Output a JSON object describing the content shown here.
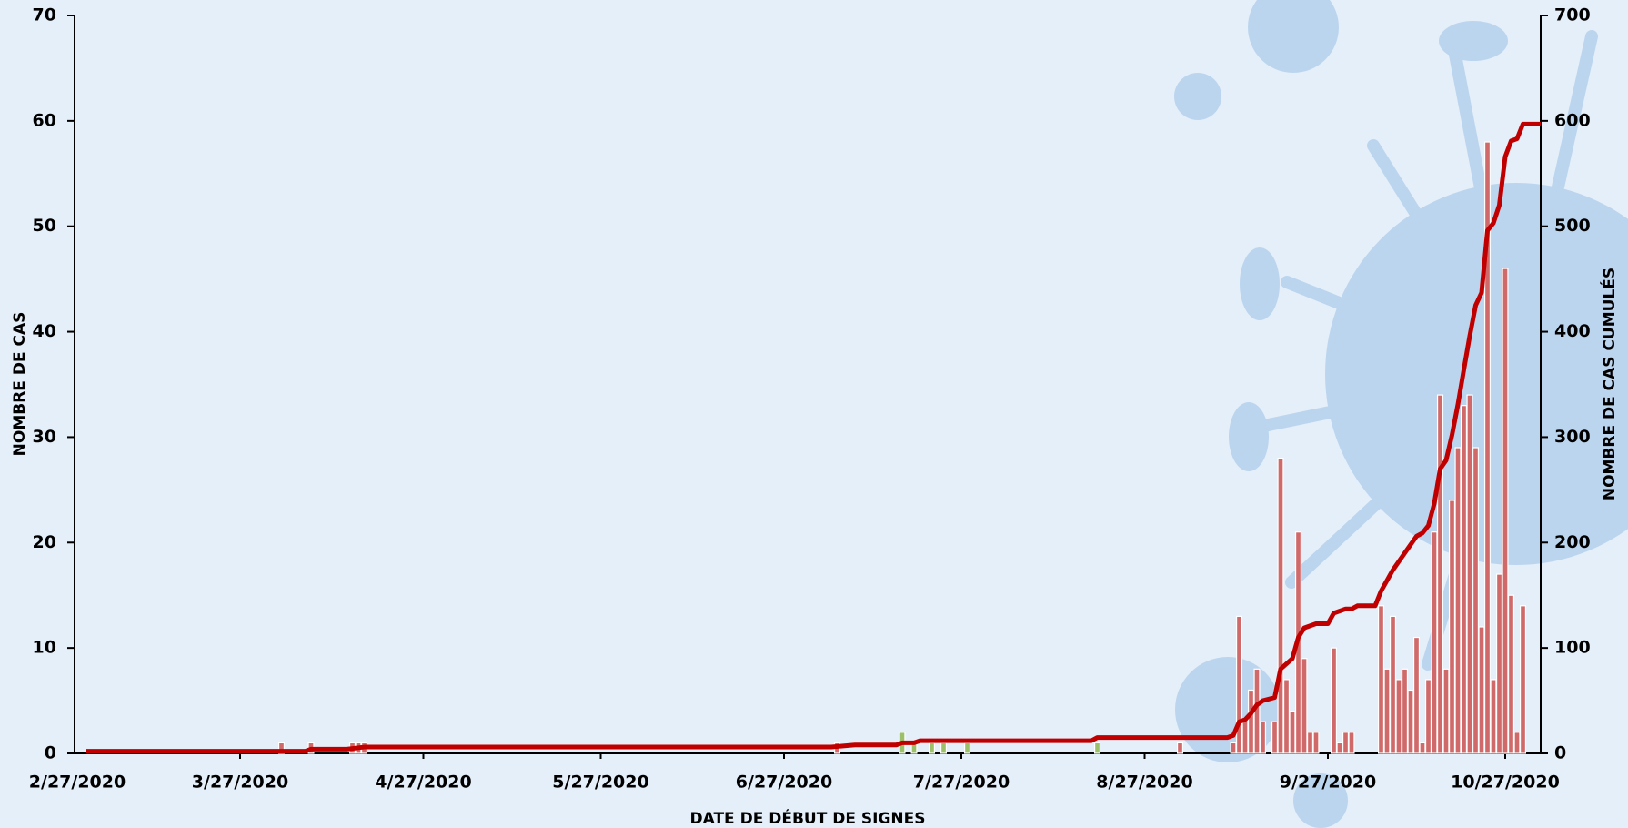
{
  "chart_data": {
    "type": "bar_line",
    "xlabel": "DATE DE DÉBUT DE SIGNES",
    "ylabel": "NOMBRE DE CAS",
    "y2label": "NOMBRE DE CAS CUMULÉS",
    "xlim": [
      "2/28/2020",
      "11/2/2020"
    ],
    "xticks": [
      "2/27/2020",
      "3/27/2020",
      "4/27/2020",
      "5/27/2020",
      "6/27/2020",
      "7/27/2020",
      "8/27/2020",
      "9/27/2020",
      "10/27/2020"
    ],
    "ylim": [
      0,
      70
    ],
    "yticks": [
      0,
      10,
      20,
      30,
      40,
      50,
      60,
      70
    ],
    "y2lim": [
      0,
      700
    ],
    "y2ticks": [
      0,
      100,
      200,
      300,
      400,
      500,
      600,
      700
    ],
    "grid": false,
    "series": [
      {
        "type": "bar",
        "color": "#d06a6a",
        "x": [
          "4/3/2020",
          "4/8/2020",
          "4/15/2020",
          "4/16/2020",
          "4/17/2020",
          "7/6/2020",
          "9/2/2020",
          "9/11/2020",
          "9/12/2020",
          "9/13/2020",
          "9/14/2020",
          "9/15/2020",
          "9/16/2020",
          "9/18/2020",
          "9/19/2020",
          "9/20/2020",
          "9/21/2020",
          "9/22/2020",
          "9/23/2020",
          "9/24/2020",
          "9/25/2020",
          "9/28/2020",
          "9/29/2020",
          "9/30/2020",
          "10/1/2020",
          "10/6/2020",
          "10/7/2020",
          "10/8/2020",
          "10/9/2020",
          "10/10/2020",
          "10/11/2020",
          "10/12/2020",
          "10/13/2020",
          "10/14/2020",
          "10/15/2020",
          "10/16/2020",
          "10/17/2020",
          "10/18/2020",
          "10/19/2020",
          "10/20/2020",
          "10/21/2020",
          "10/22/2020",
          "10/23/2020",
          "10/24/2020",
          "10/25/2020",
          "10/26/2020",
          "10/27/2020",
          "10/28/2020",
          "10/29/2020",
          "10/30/2020"
        ],
        "values": [
          1,
          1,
          1,
          1,
          1,
          1,
          1,
          1,
          13,
          3,
          6,
          8,
          3,
          3,
          28,
          7,
          4,
          21,
          9,
          2,
          2,
          10,
          1,
          2,
          2,
          14,
          8,
          13,
          7,
          8,
          6,
          11,
          1,
          7,
          21,
          34,
          8,
          24,
          29,
          33,
          34,
          29,
          12,
          58,
          7,
          17,
          46,
          15,
          2,
          14
        ]
      },
      {
        "type": "bar",
        "color": "#9cc06a",
        "x": [
          "7/17/2020",
          "7/19/2020",
          "7/22/2020",
          "7/24/2020",
          "7/28/2020",
          "8/19/2020"
        ],
        "values": [
          2,
          1,
          1,
          1,
          1,
          1
        ]
      },
      {
        "type": "line",
        "axis": "y2",
        "color": "#c00000",
        "x": [
          "3/1/2020",
          "4/7/2020",
          "4/8/2020",
          "4/14/2020",
          "4/17/2020",
          "7/5/2020",
          "7/9/2020",
          "7/16/2020",
          "7/17/2020",
          "7/19/2020",
          "7/20/2020",
          "8/18/2020",
          "8/19/2020",
          "9/10/2020",
          "9/11/2020",
          "9/12/2020",
          "9/13/2020",
          "9/14/2020",
          "9/15/2020",
          "9/16/2020",
          "9/18/2020",
          "9/19/2020",
          "9/21/2020",
          "9/22/2020",
          "9/23/2020",
          "9/25/2020",
          "9/27/2020",
          "9/28/2020",
          "9/30/2020",
          "10/1/2020",
          "10/2/2020",
          "10/5/2020",
          "10/6/2020",
          "10/8/2020",
          "10/10/2020",
          "10/12/2020",
          "10/13/2020",
          "10/14/2020",
          "10/15/2020",
          "10/16/2020",
          "10/17/2020",
          "10/18/2020",
          "10/19/2020",
          "10/20/2020",
          "10/21/2020",
          "10/22/2020",
          "10/23/2020",
          "10/24/2020",
          "10/25/2020",
          "10/26/2020",
          "10/27/2020",
          "10/28/2020",
          "10/29/2020",
          "10/30/2020",
          "11/2/2020"
        ],
        "values": [
          2,
          2,
          4,
          4,
          6,
          6,
          8,
          8,
          10,
          10,
          12,
          12,
          15,
          15,
          17,
          30,
          32,
          38,
          46,
          50,
          53,
          80,
          90,
          110,
          119,
          123,
          123,
          133,
          137,
          137,
          140,
          140,
          154,
          174,
          190,
          206,
          209,
          216,
          237,
          270,
          278,
          302,
          331,
          364,
          396,
          425,
          437,
          496,
          503,
          520,
          566,
          581,
          583,
          597,
          597
        ]
      }
    ]
  }
}
